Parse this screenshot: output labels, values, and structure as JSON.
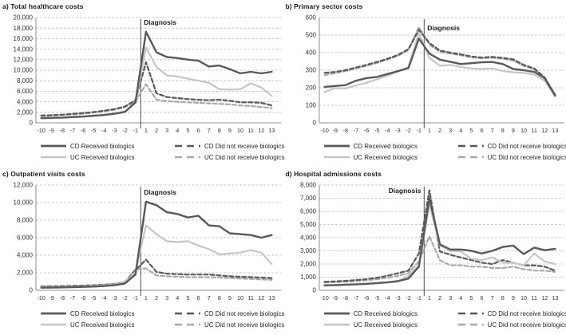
{
  "chart_data": [
    {
      "id": "a",
      "type": "line",
      "title": "a) Total healthcare costs",
      "xlabel": "",
      "ylabel": "",
      "ylim": [
        0,
        20000
      ],
      "ytick_step": 2000,
      "grid": true,
      "legend_position": "bottom",
      "categories": [
        "-10",
        "-9",
        "-8",
        "-7",
        "-6",
        "-5",
        "-4",
        "-3",
        "-2",
        "-1",
        "1",
        "2",
        "3",
        "4",
        "5",
        "6",
        "7",
        "8",
        "9",
        "10",
        "11",
        "12",
        "13"
      ],
      "diagnosis": {
        "label": "Diagnosis",
        "line_after_category": "-1",
        "label_side": "right",
        "label_dy": 9
      },
      "series": [
        {
          "name": "CD Received biologics",
          "color": "#595959",
          "dash": "",
          "width": 2.4,
          "values": [
            900,
            950,
            1000,
            1100,
            1200,
            1350,
            1500,
            1750,
            2100,
            3900,
            17300,
            13400,
            12500,
            12300,
            12000,
            11800,
            10700,
            10900,
            10200,
            9400,
            9700,
            9400,
            9700
          ]
        },
        {
          "name": "UC Received biologics",
          "color": "#c6c6c6",
          "dash": "",
          "width": 2.2,
          "values": [
            800,
            850,
            950,
            1050,
            1150,
            1300,
            1450,
            1700,
            2000,
            3800,
            14300,
            10600,
            9000,
            8800,
            8400,
            8000,
            7600,
            6400,
            6300,
            6400,
            7500,
            6700,
            5100
          ]
        },
        {
          "name": "CD Did not receive biologics",
          "color": "#595959",
          "dash": "5,3",
          "width": 2.2,
          "values": [
            1400,
            1450,
            1550,
            1700,
            1850,
            2050,
            2300,
            2600,
            3100,
            4300,
            11500,
            5600,
            4900,
            4700,
            4500,
            4400,
            4300,
            4400,
            4200,
            3900,
            3900,
            3800,
            3300
          ]
        },
        {
          "name": "UC Did not receive biologics",
          "color": "#a9a9a9",
          "dash": "5,3",
          "width": 2.2,
          "values": [
            1300,
            1400,
            1500,
            1600,
            1750,
            1950,
            2200,
            2500,
            3000,
            4100,
            7300,
            4400,
            4100,
            4000,
            3900,
            3800,
            3700,
            3600,
            3500,
            3300,
            3200,
            3000,
            2800
          ]
        }
      ]
    },
    {
      "id": "b",
      "type": "line",
      "title": "b) Primary sector costs",
      "xlabel": "",
      "ylabel": "",
      "ylim": [
        0,
        600
      ],
      "ytick_step": 100,
      "grid": true,
      "legend_position": "bottom",
      "categories": [
        "-10",
        "-9",
        "-8",
        "-7",
        "-6",
        "-5",
        "-4",
        "-3",
        "-2",
        "-1",
        "1",
        "2",
        "3",
        "4",
        "5",
        "6",
        "7",
        "8",
        "9",
        "10",
        "11",
        "12",
        "13"
      ],
      "diagnosis": {
        "label": "Diagnosis",
        "line_after_category": "-1",
        "label_side": "right",
        "label_dy": 16
      },
      "series": [
        {
          "name": "CD Received biologics",
          "color": "#595959",
          "dash": "",
          "width": 2.4,
          "values": [
            205,
            210,
            215,
            240,
            255,
            262,
            278,
            295,
            312,
            480,
            395,
            360,
            348,
            335,
            340,
            345,
            347,
            335,
            307,
            300,
            290,
            255,
            155
          ]
        },
        {
          "name": "UC Received biologics",
          "color": "#c6c6c6",
          "dash": "",
          "width": 2.2,
          "values": [
            175,
            198,
            196,
            214,
            228,
            248,
            268,
            292,
            318,
            510,
            370,
            325,
            330,
            318,
            310,
            307,
            310,
            295,
            288,
            285,
            275,
            240,
            150
          ]
        },
        {
          "name": "CD Did not receive biologics",
          "color": "#595959",
          "dash": "5,3",
          "width": 2.2,
          "values": [
            285,
            290,
            300,
            315,
            330,
            347,
            365,
            387,
            420,
            530,
            455,
            412,
            400,
            390,
            378,
            372,
            376,
            370,
            362,
            330,
            310,
            258,
            160
          ]
        },
        {
          "name": "UC Did not receive biologics",
          "color": "#a9a9a9",
          "dash": "5,3",
          "width": 2.2,
          "values": [
            272,
            283,
            295,
            310,
            325,
            342,
            360,
            382,
            415,
            545,
            445,
            405,
            395,
            385,
            373,
            368,
            371,
            365,
            355,
            325,
            305,
            252,
            158
          ]
        }
      ]
    },
    {
      "id": "c",
      "type": "line",
      "title": "c) Outpatient visits costs",
      "xlabel": "",
      "ylabel": "",
      "ylim": [
        0,
        12000
      ],
      "ytick_step": 2000,
      "grid": true,
      "legend_position": "bottom",
      "categories": [
        "-10",
        "-9",
        "-8",
        "-7",
        "-6",
        "-5",
        "-4",
        "-3",
        "-2",
        "-1",
        "1",
        "2",
        "3",
        "4",
        "5",
        "6",
        "7",
        "8",
        "9",
        "10",
        "11",
        "12",
        "13"
      ],
      "diagnosis": {
        "label": "Diagnosis",
        "line_after_category": "-1",
        "label_side": "right",
        "label_dy": 12
      },
      "series": [
        {
          "name": "CD Received biologics",
          "color": "#595959",
          "dash": "",
          "width": 2.4,
          "values": [
            300,
            320,
            340,
            360,
            390,
            430,
            490,
            580,
            780,
            1800,
            10100,
            9700,
            8900,
            8700,
            8300,
            8500,
            7400,
            7300,
            6500,
            6400,
            6300,
            6000,
            6300
          ]
        },
        {
          "name": "UC Received biologics",
          "color": "#c6c6c6",
          "dash": "",
          "width": 2.2,
          "values": [
            350,
            370,
            390,
            410,
            440,
            490,
            560,
            670,
            900,
            2100,
            7400,
            6400,
            5600,
            5500,
            5600,
            5100,
            4700,
            4100,
            4200,
            4300,
            4600,
            4300,
            3000
          ]
        },
        {
          "name": "CD Did not receive biologics",
          "color": "#595959",
          "dash": "5,3",
          "width": 2.2,
          "values": [
            420,
            450,
            470,
            490,
            520,
            560,
            620,
            720,
            900,
            2300,
            3500,
            2100,
            1900,
            1850,
            1800,
            1800,
            1800,
            1700,
            1600,
            1550,
            1500,
            1450,
            1400
          ]
        },
        {
          "name": "UC Did not receive biologics",
          "color": "#a9a9a9",
          "dash": "5,3",
          "width": 2.2,
          "values": [
            450,
            480,
            500,
            520,
            550,
            590,
            650,
            760,
            950,
            2400,
            2500,
            1700,
            1600,
            1550,
            1500,
            1500,
            1500,
            1450,
            1400,
            1350,
            1300,
            1250,
            1200
          ]
        }
      ]
    },
    {
      "id": "d",
      "type": "line",
      "title": "d) Hospital admissions costs",
      "xlabel": "",
      "ylabel": "",
      "ylim": [
        0,
        8000
      ],
      "ytick_step": 1000,
      "grid": true,
      "legend_position": "bottom",
      "categories": [
        "-10",
        "-9",
        "-8",
        "-7",
        "-6",
        "-5",
        "-4",
        "-3",
        "-2",
        "-1",
        "1",
        "2",
        "3",
        "4",
        "5",
        "6",
        "7",
        "8",
        "9",
        "10",
        "11",
        "12",
        "13"
      ],
      "diagnosis": {
        "label": "Diagnosis",
        "line_after_category": "-1",
        "label_side": "left",
        "label_dy": 10
      },
      "series": [
        {
          "name": "CD Received biologics",
          "color": "#595959",
          "dash": "",
          "width": 2.4,
          "values": [
            380,
            400,
            430,
            460,
            500,
            550,
            610,
            700,
            900,
            1800,
            7000,
            3500,
            3100,
            3100,
            3000,
            2800,
            3000,
            3300,
            3400,
            2750,
            3250,
            3050,
            3150
          ]
        },
        {
          "name": "UC Received biologics",
          "color": "#c6c6c6",
          "dash": "",
          "width": 2.2,
          "values": [
            350,
            380,
            410,
            440,
            480,
            530,
            590,
            680,
            1100,
            1900,
            6500,
            3400,
            3000,
            2950,
            2400,
            2300,
            2500,
            2100,
            2100,
            1900,
            2800,
            2200,
            2000
          ]
        },
        {
          "name": "CD Did not receive biologics",
          "color": "#595959",
          "dash": "5,3",
          "width": 2.2,
          "values": [
            650,
            680,
            720,
            780,
            850,
            950,
            1100,
            1300,
            1500,
            2800,
            7600,
            2950,
            2700,
            2500,
            2300,
            2100,
            2000,
            2300,
            2100,
            1900,
            1900,
            1800,
            1500
          ]
        },
        {
          "name": "UC Did not receive biologics",
          "color": "#a9a9a9",
          "dash": "5,3",
          "width": 2.2,
          "values": [
            600,
            620,
            650,
            700,
            760,
            850,
            950,
            1100,
            1300,
            2200,
            4100,
            2300,
            1900,
            1900,
            1800,
            1800,
            1700,
            1700,
            1800,
            1600,
            1500,
            1500,
            1400
          ]
        }
      ]
    }
  ]
}
